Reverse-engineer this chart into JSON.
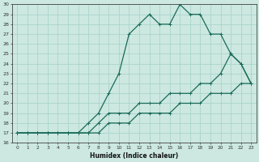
{
  "xlabel": "Humidex (Indice chaleur)",
  "bg_color": "#cce8e0",
  "grid_color": "#aad4cc",
  "line_color": "#1a6b5a",
  "xlim": [
    -0.5,
    23.5
  ],
  "ylim": [
    16,
    30
  ],
  "xticks": [
    0,
    1,
    2,
    3,
    4,
    5,
    6,
    7,
    8,
    9,
    10,
    11,
    12,
    13,
    14,
    15,
    16,
    17,
    18,
    19,
    20,
    21,
    22,
    23
  ],
  "yticks": [
    16,
    17,
    18,
    19,
    20,
    21,
    22,
    23,
    24,
    25,
    26,
    27,
    28,
    29,
    30
  ],
  "line1_x": [
    0,
    1,
    2,
    3,
    4,
    5,
    6,
    7,
    8,
    9,
    10,
    11,
    12,
    13,
    14,
    15,
    16,
    17,
    18,
    19,
    20,
    21,
    22,
    23
  ],
  "line1_y": [
    17,
    17,
    17,
    17,
    17,
    17,
    17,
    18,
    19,
    21,
    23,
    27,
    28,
    29,
    28,
    28,
    30,
    29,
    29,
    27,
    27,
    25,
    24,
    22
  ],
  "line2_x": [
    0,
    1,
    2,
    3,
    4,
    5,
    6,
    7,
    8,
    9,
    10,
    11,
    12,
    13,
    14,
    15,
    16,
    17,
    18,
    19,
    20,
    21,
    22,
    23
  ],
  "line2_y": [
    17,
    17,
    17,
    17,
    17,
    17,
    17,
    17,
    18,
    19,
    19,
    19,
    20,
    20,
    20,
    21,
    21,
    21,
    22,
    22,
    23,
    25,
    24,
    22
  ],
  "line3_x": [
    0,
    1,
    2,
    3,
    4,
    5,
    6,
    7,
    8,
    9,
    10,
    11,
    12,
    13,
    14,
    15,
    16,
    17,
    18,
    19,
    20,
    21,
    22,
    23
  ],
  "line3_y": [
    17,
    17,
    17,
    17,
    17,
    17,
    17,
    17,
    17,
    18,
    18,
    18,
    19,
    19,
    19,
    19,
    20,
    20,
    20,
    21,
    21,
    21,
    22,
    22
  ]
}
